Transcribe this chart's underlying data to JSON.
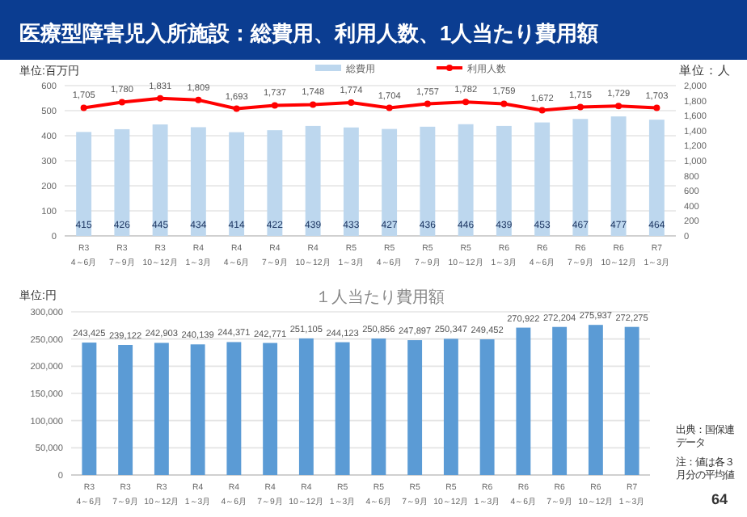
{
  "chart_data": [
    {
      "type": "bar",
      "title": "医療型障害児入所施設：総費用、利用人数、1人当たり費用額",
      "ylabel": "単位:百万円",
      "y2label": "単位：人",
      "categories": [
        "R3\n4～6月",
        "R3\n7～9月",
        "R3\n10～12月",
        "R4\n1～3月",
        "R4\n4～6月",
        "R4\n7～9月",
        "R4\n10～12月",
        "R5\n1～3月",
        "R5\n4～6月",
        "R5\n7～9月",
        "R5\n10～12月",
        "R6\n1～3月",
        "R6\n4～6月",
        "R6\n7～9月",
        "R6\n10～12月",
        "R7\n1～3月"
      ],
      "series": [
        {
          "name": "総費用",
          "type": "bar",
          "color": "#bdd7ee",
          "values": [
            415,
            426,
            445,
            434,
            414,
            422,
            439,
            433,
            427,
            436,
            446,
            439,
            453,
            467,
            477,
            464
          ],
          "value_labels": [
            "415",
            "426",
            "445",
            "434",
            "414",
            "422",
            "439",
            "433",
            "427",
            "436",
            "446",
            "439",
            "453",
            "467",
            "477",
            "464"
          ]
        },
        {
          "name": "利用人数",
          "type": "line",
          "axis": "y2",
          "color": "#ff0000",
          "marker": "circle",
          "values": [
            1705,
            1780,
            1831,
            1809,
            1693,
            1737,
            1748,
            1774,
            1704,
            1757,
            1782,
            1759,
            1672,
            1715,
            1729,
            1703
          ],
          "value_labels": [
            "1,705",
            "1,780",
            "1,831",
            "1,809",
            "1,693",
            "1,737",
            "1,748",
            "1,774",
            "1,704",
            "1,757",
            "1,782",
            "1,759",
            "1,672",
            "1,715",
            "1,729",
            "1,703"
          ]
        }
      ],
      "ylim": [
        0,
        600
      ],
      "yticks": [
        0,
        100,
        200,
        300,
        400,
        500,
        600
      ],
      "y2lim": [
        0,
        2000
      ],
      "y2ticks": [
        {
          "value": 0,
          "label": "0"
        },
        {
          "value": 200,
          "label": "200"
        },
        {
          "value": 400,
          "label": "400"
        },
        {
          "value": 600,
          "label": "600"
        },
        {
          "value": 800,
          "label": "800"
        },
        {
          "value": 1000,
          "label": "1,000"
        },
        {
          "value": 1200,
          "label": "1,200"
        },
        {
          "value": 1400,
          "label": "1,400"
        },
        {
          "value": 1600,
          "label": "1,600"
        },
        {
          "value": 1800,
          "label": "1,800"
        },
        {
          "value": 2000,
          "label": "2,000"
        }
      ],
      "grid": "y",
      "legend": "top"
    },
    {
      "type": "bar",
      "title": "１人当たり費用額",
      "ylabel": "単位:円",
      "categories": [
        "R3\n4～6月",
        "R3\n7～9月",
        "R3\n10～12月",
        "R4\n1～3月",
        "R4\n4～6月",
        "R4\n7～9月",
        "R4\n10～12月",
        "R5\n1～3月",
        "R5\n4～6月",
        "R5\n7～9月",
        "R5\n10～12月",
        "R6\n1～3月",
        "R6\n4～6月",
        "R6\n7～9月",
        "R6\n10～12月",
        "R7\n1～3月"
      ],
      "values": [
        243425,
        239122,
        242903,
        240139,
        244371,
        242771,
        251105,
        244123,
        250856,
        247897,
        250347,
        249452,
        270922,
        272204,
        275937,
        272275
      ],
      "color": "#5b9bd5",
      "value_labels": [
        "243,425",
        "239,122",
        "242,903",
        "240,139",
        "244,371",
        "242,771",
        "251,105",
        "244,123",
        "250,856",
        "247,897",
        "250,347",
        "249,452",
        "270,922",
        "272,204",
        "275,937",
        "272,275"
      ],
      "ylim": [
        0,
        300000
      ],
      "yticks": [
        {
          "value": 0,
          "label": "0"
        },
        {
          "value": 50000,
          "label": "50,000"
        },
        {
          "value": 100000,
          "label": "100,000"
        },
        {
          "value": 150000,
          "label": "150,000"
        },
        {
          "value": 200000,
          "label": "200,000"
        },
        {
          "value": 250000,
          "label": "250,000"
        },
        {
          "value": 300000,
          "label": "300,000"
        }
      ],
      "grid": "y",
      "annotations": [
        "出典：国保連データ",
        "注：値は各３月分の平均値",
        "64"
      ]
    }
  ]
}
